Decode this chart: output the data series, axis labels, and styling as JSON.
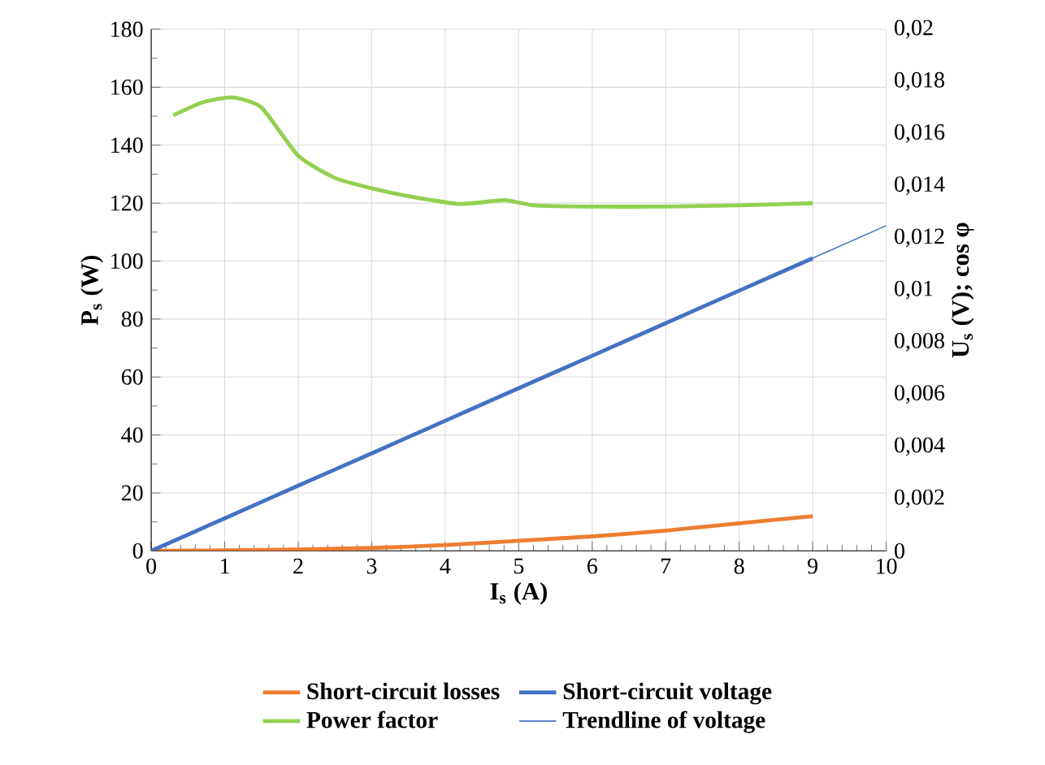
{
  "chart_data": {
    "type": "line",
    "xlabel": "I$_{s}$ (A)",
    "ylabel": "P$_{s}$ (W)",
    "y2label": "U$_{s}$ (V); cos φ",
    "x": [
      0,
      1,
      2,
      3,
      4,
      5,
      6,
      7,
      8,
      9
    ],
    "xlim": [
      0,
      10
    ],
    "xticks": [
      0,
      1,
      2,
      3,
      4,
      5,
      6,
      7,
      8,
      9,
      10
    ],
    "ylim": [
      0,
      180
    ],
    "yticks": [
      0,
      20,
      40,
      60,
      80,
      100,
      120,
      140,
      160,
      180
    ],
    "y2lim": [
      0,
      0.02
    ],
    "y2ticks": [
      {
        "value": 0,
        "label": "0"
      },
      {
        "value": 0.002,
        "label": "0,002"
      },
      {
        "value": 0.004,
        "label": "0,004"
      },
      {
        "value": 0.006,
        "label": "0,006"
      },
      {
        "value": 0.008,
        "label": "0,008"
      },
      {
        "value": 0.01,
        "label": "0,01"
      },
      {
        "value": 0.012,
        "label": "0,012"
      },
      {
        "value": 0.014,
        "label": "0,014"
      },
      {
        "value": 0.016,
        "label": "0,016"
      },
      {
        "value": 0.018,
        "label": "0,018"
      },
      {
        "value": 0.02,
        "label": "0,02"
      }
    ],
    "grid": true,
    "legend": "bottom",
    "line_style": "solid",
    "series": [
      {
        "name": "Short-circuit losses",
        "color": "#ed7d31",
        "values": [
          0,
          0.2,
          0.5,
          1,
          2,
          3.5,
          5,
          7,
          9.5,
          12
        ]
      },
      {
        "name": "Short-circuit voltage",
        "color": "#4472c4",
        "axis": "y2",
        "values": [
          0,
          0.00125,
          0.0025,
          0.00374,
          0.00499,
          0.00624,
          0.00748,
          0.00873,
          0.00998,
          0.01122
        ]
      },
      {
        "name": "Power factor",
        "color": "#92d050",
        "axis": "y2",
        "x": [
          0.3,
          0.7,
          1.1,
          1.5,
          2,
          2.5,
          3,
          3.5,
          4.2,
          4.8,
          5.2,
          6,
          7,
          8,
          9
        ],
        "values": [
          0.0167,
          0.0172,
          0.01739,
          0.017,
          0.01515,
          0.0143,
          0.0139,
          0.0136,
          0.0133,
          0.01345,
          0.01325,
          0.0132,
          0.0132,
          0.01325,
          0.01333
        ]
      },
      {
        "name": "Trendline of voltage",
        "color": "#4472c4",
        "axis": "y2",
        "x": [
          0,
          10
        ],
        "values": [
          0,
          0.01247
        ]
      }
    ]
  }
}
